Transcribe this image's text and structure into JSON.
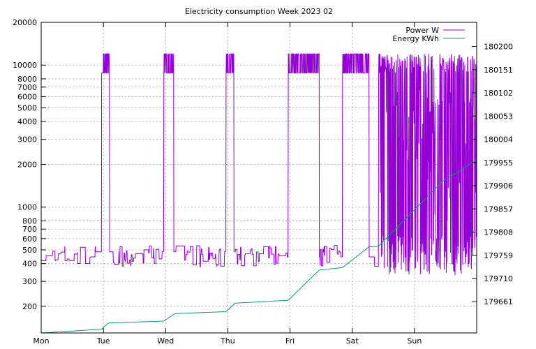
{
  "chart_data": {
    "type": "line",
    "title": "Electricity consumption Week 2023 02",
    "xlabel": "",
    "ylabel": "",
    "x_categories": [
      "Mon",
      "Tue",
      "Wed",
      "Thu",
      "Fri",
      "Sat",
      "Sun"
    ],
    "x_range_days": [
      0,
      7.0
    ],
    "y_left": {
      "scale": "log",
      "range": [
        130,
        20000
      ],
      "ticks": [
        200,
        300,
        400,
        500,
        600,
        700,
        800,
        1000,
        2000,
        3000,
        4000,
        5000,
        6000,
        7000,
        8000,
        10000,
        20000
      ],
      "tick_labels": [
        "200",
        "300",
        "400",
        "500",
        "600",
        "700",
        "800",
        "1000",
        "2000",
        "3000",
        "4000",
        "5000",
        "6000",
        "7000",
        "8000",
        "10000",
        "20000"
      ]
    },
    "y_right": {
      "scale": "linear",
      "range": [
        179595,
        180251
      ],
      "ticks": [
        179661,
        179710,
        179759,
        179808,
        179857,
        179906,
        179955,
        180004,
        180053,
        180102,
        180151,
        180200
      ],
      "tick_labels": [
        "179661",
        "179710",
        "179759",
        "179808",
        "179857",
        "179906",
        "179955",
        "180004",
        "180053",
        "180102",
        "180151",
        "180200"
      ]
    },
    "grid": true,
    "legend_position": "top-right",
    "series": [
      {
        "name": "Power W",
        "axis": "left",
        "color": "#9400d3",
        "baseline_w": [
          380,
          540
        ],
        "high_periods_days": [
          [
            0.97,
            1.1
          ],
          [
            1.97,
            2.13
          ],
          [
            2.97,
            3.1
          ],
          [
            3.97,
            4.47
          ],
          [
            4.84,
            5.27
          ],
          [
            5.42,
            7.0
          ]
        ],
        "high_level_w": [
          8800,
          12000
        ],
        "sunday_fluctuation_w": [
          330,
          12000
        ]
      },
      {
        "name": "Energy KWh",
        "axis": "right",
        "color": "#009e73",
        "points": [
          [
            0.0,
            179595
          ],
          [
            0.97,
            179603
          ],
          [
            1.08,
            179616
          ],
          [
            1.97,
            179620
          ],
          [
            2.15,
            179636
          ],
          [
            2.97,
            179640
          ],
          [
            3.12,
            179658
          ],
          [
            3.97,
            179664
          ],
          [
            4.47,
            179728
          ],
          [
            4.84,
            179733
          ],
          [
            5.27,
            179777
          ],
          [
            5.42,
            179778
          ],
          [
            6.45,
            179915
          ],
          [
            7.0,
            179960
          ]
        ]
      }
    ]
  }
}
